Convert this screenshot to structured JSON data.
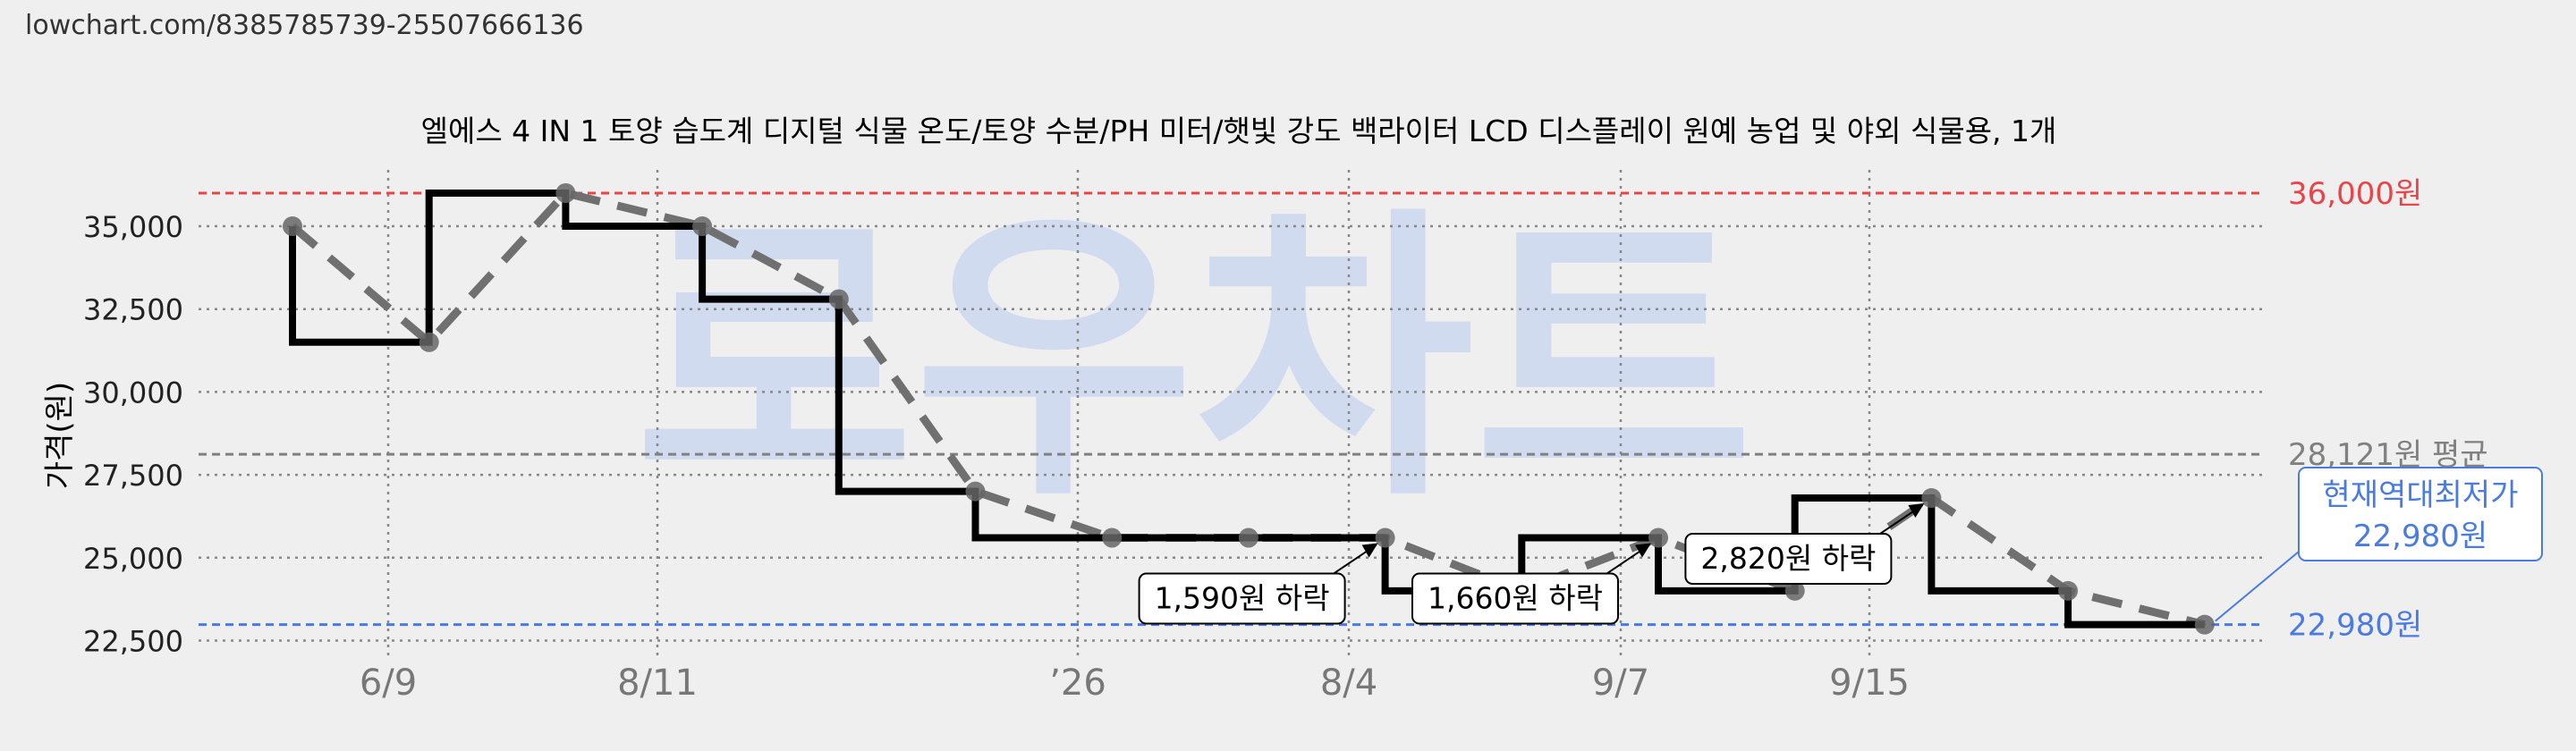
{
  "url_text": "lowchart.com/8385785739-25507666136",
  "watermark": "로우차트",
  "colors": {
    "background": "#efefef",
    "max_line": "#e8454a",
    "avg_line": "#808080",
    "min_line": "#4a7be0",
    "step_line": "#000000",
    "trend_line": "#707070",
    "watermark": "#ccd8f0"
  },
  "chart_data": {
    "type": "line",
    "title": "엘에스 4 IN 1 토양 습도계 디지털 식물 온도/토양 수분/PH 미터/햇빛 강도 백라이터 LCD 디스플레이 원예 농업 및 야외 식물용, 1개",
    "ylabel": "가격(원)",
    "xlabel": "",
    "ylim": [
      22000,
      36700
    ],
    "yticks": [
      22500,
      25000,
      27500,
      30000,
      32500,
      35000
    ],
    "ytick_labels": [
      "22,500",
      "25,000",
      "27,500",
      "30,000",
      "32,500",
      "35,000"
    ],
    "xtick_labels": [
      "6/9",
      "8/11",
      "’26",
      "8/4",
      "9/7",
      "9/15"
    ],
    "grid": true,
    "series": [
      {
        "values": [
          35000,
          31500,
          36000,
          35000,
          32800,
          27000,
          25600,
          25600,
          25600,
          24000,
          25600,
          24000,
          26800,
          24000,
          22980
        ]
      }
    ],
    "reference_lines": [
      {
        "kind": "max",
        "value": 36000,
        "label": "36,000원"
      },
      {
        "kind": "avg",
        "value": 28121,
        "label": "28,121원 평균"
      },
      {
        "kind": "min",
        "value": 22980,
        "label": "22,980원"
      }
    ],
    "annotations": [
      {
        "text": "1,590원 하락",
        "target_index": 8
      },
      {
        "text": "1,660원 하락",
        "target_index": 10
      },
      {
        "text": "2,820원 하락",
        "target_index": 12
      }
    ],
    "current_low_callout": {
      "line1": "현재역대최저가",
      "line2": "22,980원"
    }
  }
}
